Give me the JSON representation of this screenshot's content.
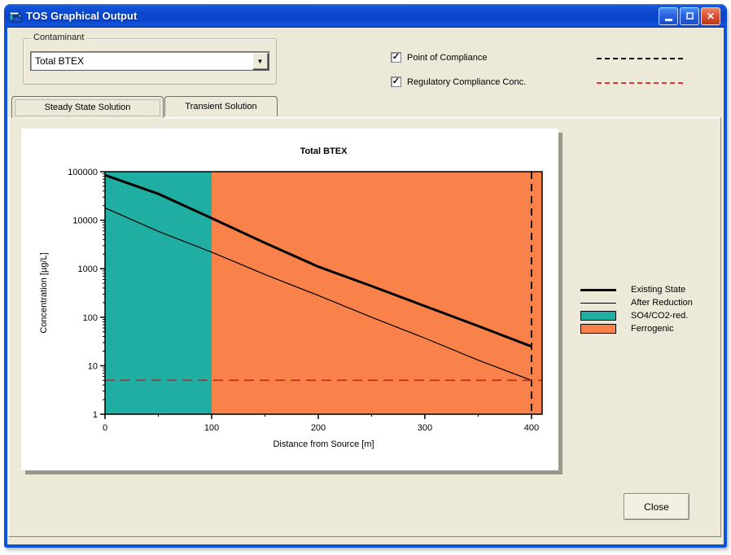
{
  "window": {
    "title": "TOS Graphical Output"
  },
  "contaminant": {
    "group_label": "Contaminant",
    "selected": "Total BTEX"
  },
  "compliance_toggles": [
    {
      "label": "Point of Compliance",
      "checked": true,
      "line_color": "#000000"
    },
    {
      "label": "Regulatory Compliance Conc.",
      "checked": true,
      "line_color": "#e03434"
    }
  ],
  "tabs": [
    {
      "label": "Steady State Solution",
      "active": true
    },
    {
      "label": "Transient Solution",
      "active": false
    }
  ],
  "legend": {
    "entries": [
      {
        "label": "Existing State",
        "swatch": "thick-line",
        "color": "#000000"
      },
      {
        "label": "After Reduction",
        "swatch": "thin-line",
        "color": "#000000"
      },
      {
        "label": "SO4/CO2-red.",
        "swatch": "fill",
        "color": "#21AEA2"
      },
      {
        "label": "Ferrogenic",
        "swatch": "fill",
        "color": "#F8824A"
      }
    ]
  },
  "close_button_label": "Close",
  "chart_data": {
    "type": "line",
    "title": "Total BTEX",
    "xlabel": "Distance from Source [m]",
    "ylabel": "Concentration [µg/L]",
    "x_axis": {
      "min": 0,
      "max": 410,
      "ticks": [
        0,
        100,
        200,
        300,
        400
      ]
    },
    "y_axis": {
      "scale": "log",
      "min": 1,
      "max": 100000,
      "ticks": [
        1,
        10,
        100,
        1000,
        10000,
        100000
      ]
    },
    "x": [
      0,
      50,
      100,
      150,
      200,
      250,
      300,
      350,
      400
    ],
    "series": [
      {
        "name": "Existing State",
        "line_width": "thick",
        "color": "#000000",
        "values": [
          85000,
          35000,
          11000,
          3400,
          1100,
          440,
          170,
          66,
          25
        ]
      },
      {
        "name": "After Reduction",
        "line_width": "thin",
        "color": "#000000",
        "values": [
          18000,
          5900,
          2200,
          760,
          280,
          100,
          37,
          13,
          5
        ]
      }
    ],
    "zones": [
      {
        "name": "SO4/CO2-red.",
        "x_from": 0,
        "x_to": 100,
        "color": "#21AEA2"
      },
      {
        "name": "Ferrogenic",
        "x_from": 100,
        "x_to": 410,
        "color": "#F8824A"
      }
    ],
    "reference_lines": [
      {
        "name": "Point of Compliance",
        "axis": "x",
        "value": 400,
        "color": "#000000",
        "style": "dashed"
      },
      {
        "name": "Regulatory Compliance Conc.",
        "axis": "y",
        "value": 5,
        "color": "#cc2222",
        "style": "dashed"
      }
    ],
    "background": "#ffffff",
    "legend_position": "right-outside",
    "grid": false
  }
}
